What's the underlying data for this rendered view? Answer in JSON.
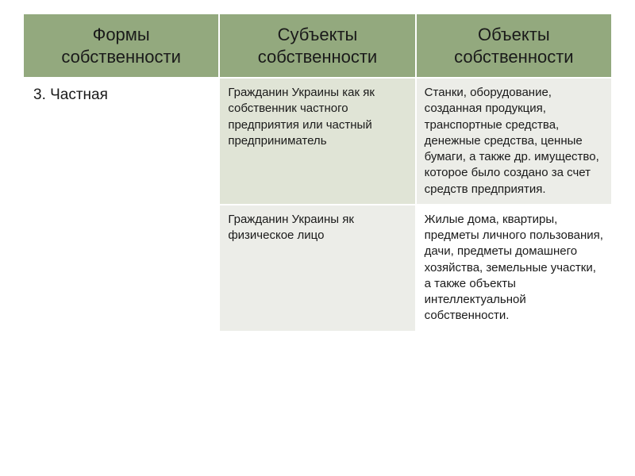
{
  "table": {
    "columns": [
      "Формы собственности",
      "Субъекты собственности",
      "Объекты собственности"
    ],
    "col1_value": "3. Частная",
    "rows": [
      {
        "col2": "Гражданин Украины как як собственник частного предприятия или частный предприниматель",
        "col3": "Станки, оборудование, созданная продукция, транспортные средства, денежные средства, ценные бумаги, а также др. имущество, которое было создано за счет средств предприятия."
      },
      {
        "col2": "Гражданин  Украины як физическое лицо",
        "col3": "Жилые дома, квартиры, предметы личного пользования, дачи, предметы домашнего хозяйства, земельные участки, а также объекты интеллектуальной собственности."
      }
    ]
  },
  "styling": {
    "header_bg": "#93a97e",
    "alt_bg_1": "#e0e4d6",
    "alt_bg_2": "#ecede8",
    "border_color": "#ffffff",
    "header_fontsize": 22,
    "body_fontsize": 15,
    "col1_fontsize": 19
  }
}
